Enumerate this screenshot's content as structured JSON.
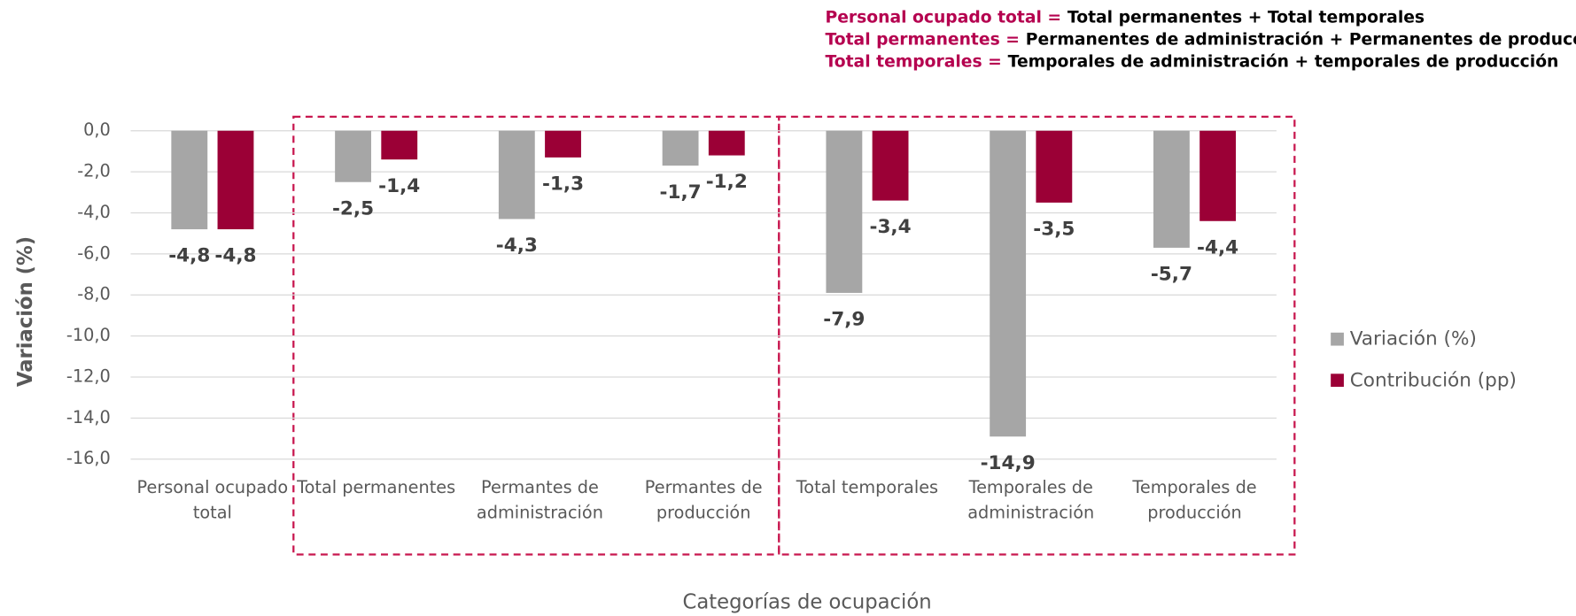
{
  "chart_data": {
    "type": "bar",
    "annotations": [
      {
        "term": "Personal ocupado total =",
        "definition": "Total permanentes + Total temporales"
      },
      {
        "term": "Total permanentes =",
        "definition": "Permanentes de administración + Permanentes de producción"
      },
      {
        "term": "Total temporales =",
        "definition": "Temporales de administración + temporales de producción"
      }
    ],
    "x_label": "Categorías de ocupación",
    "y_label": "Variación (%)",
    "categories": [
      [
        "Personal ocupado",
        "total"
      ],
      [
        "Total permanentes"
      ],
      [
        "Permantes de",
        "administración"
      ],
      [
        "Permantes de",
        "producción"
      ],
      [
        "Total temporales"
      ],
      [
        "Temporales de",
        "administración"
      ],
      [
        "Temporales de",
        "producción"
      ]
    ],
    "series": [
      {
        "name": "Variación (%)",
        "color": "#a6a6a6",
        "values": [
          -4.8,
          -2.5,
          -4.3,
          -1.7,
          -7.9,
          -14.9,
          -5.7
        ],
        "value_labels": [
          "-4,8",
          "-2,5",
          "-4,3",
          "-1,7",
          "-7,9",
          "-14,9",
          "-5,7"
        ]
      },
      {
        "name": "Contribución (pp)",
        "color": "#9b0036",
        "values": [
          -4.8,
          -1.4,
          -1.3,
          -1.2,
          -3.4,
          -3.5,
          -4.4
        ],
        "value_labels": [
          "-4,8",
          "-1,4",
          "-1,3",
          "-1,2",
          "-3,4",
          "-3,5",
          "-4,4"
        ]
      }
    ],
    "ylim": [
      -16,
      0
    ],
    "yticks": [
      {
        "value": 0,
        "label": "0,0"
      },
      {
        "value": -2,
        "label": "-2,0"
      },
      {
        "value": -4,
        "label": "-4,0"
      },
      {
        "value": -6,
        "label": "-6,0"
      },
      {
        "value": -8,
        "label": "-8,0"
      },
      {
        "value": -10,
        "label": "-10,0"
      },
      {
        "value": -12,
        "label": "-12,0"
      },
      {
        "value": -14,
        "label": "-14,0"
      },
      {
        "value": -16,
        "label": "-16,0"
      }
    ],
    "grid": true,
    "legend": "right"
  }
}
